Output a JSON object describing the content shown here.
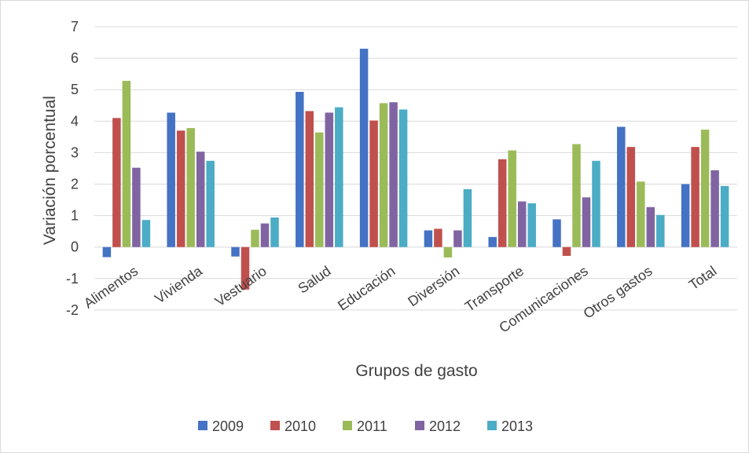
{
  "chart_data": {
    "type": "bar",
    "title": "",
    "xlabel": "Grupos de gasto",
    "ylabel": "Variación porcentual",
    "ylim": [
      -2,
      7
    ],
    "yticks": [
      -2,
      -1,
      0,
      1,
      2,
      3,
      4,
      5,
      6,
      7
    ],
    "grid": true,
    "legend_position": "bottom",
    "categories": [
      "Alimentos",
      "Vivienda",
      "Vestuario",
      "Salud",
      "Educación",
      "Diversión",
      "Transporte",
      "Comunicaciones",
      "Otros gastos",
      "Total"
    ],
    "series": [
      {
        "name": "2009",
        "color": "#4472c4",
        "values": [
          -0.32,
          4.27,
          -0.3,
          4.93,
          6.3,
          0.53,
          0.32,
          0.88,
          3.82,
          2.0
        ]
      },
      {
        "name": "2010",
        "color": "#c0504d",
        "values": [
          4.1,
          3.7,
          -1.35,
          4.32,
          4.02,
          0.58,
          2.79,
          -0.28,
          3.18,
          3.18
        ]
      },
      {
        "name": "2011",
        "color": "#9bbb59",
        "values": [
          5.28,
          3.78,
          0.55,
          3.64,
          4.57,
          -0.33,
          3.07,
          3.27,
          2.08,
          3.73
        ]
      },
      {
        "name": "2012",
        "color": "#8064a2",
        "values": [
          2.52,
          3.03,
          0.75,
          4.27,
          4.6,
          0.53,
          1.45,
          1.58,
          1.27,
          2.44
        ]
      },
      {
        "name": "2013",
        "color": "#4bacc6",
        "values": [
          0.86,
          2.74,
          0.94,
          4.44,
          4.37,
          1.84,
          1.39,
          2.74,
          1.02,
          1.94
        ]
      }
    ]
  }
}
